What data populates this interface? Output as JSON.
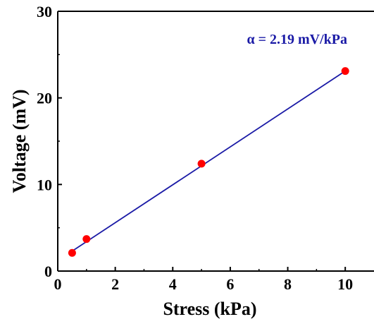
{
  "chart_data": {
    "type": "scatter",
    "xlabel": "Stress (kPa)",
    "ylabel": "Voltage (mV)",
    "xlim": [
      0,
      11
    ],
    "ylim": [
      0,
      30
    ],
    "xticks": [
      "0",
      "2",
      "4",
      "6",
      "8",
      "10"
    ],
    "yticks": [
      "0",
      "10",
      "20",
      "30"
    ],
    "grid": false,
    "annotation": "α = 2.19 mV/kPa",
    "series": [
      {
        "x": [
          0.5,
          1,
          5,
          10
        ],
        "y": [
          2.1,
          3.7,
          12.4,
          23.1
        ],
        "marker_color": "#ff0000"
      }
    ],
    "fit_line": {
      "x": [
        0.5,
        10
      ],
      "y": [
        2.3,
        23.1
      ],
      "color": "#1a1aa6"
    }
  }
}
